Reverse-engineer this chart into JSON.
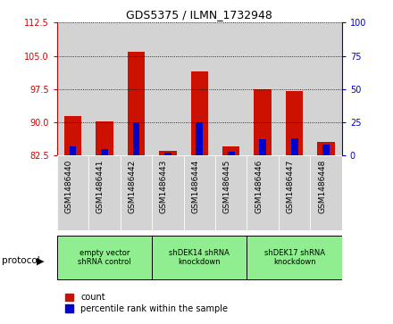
{
  "title": "GDS5375 / ILMN_1732948",
  "samples": [
    "GSM1486440",
    "GSM1486441",
    "GSM1486442",
    "GSM1486443",
    "GSM1486444",
    "GSM1486445",
    "GSM1486446",
    "GSM1486447",
    "GSM1486448"
  ],
  "red_bar_top": [
    91.5,
    90.2,
    106.0,
    83.5,
    101.5,
    84.5,
    97.5,
    97.0,
    85.5
  ],
  "red_bar_bottom": 82.5,
  "blue_values": [
    7,
    5,
    25,
    2,
    25,
    3,
    12,
    13,
    8
  ],
  "left_ylim": [
    82.5,
    112.5
  ],
  "right_ylim": [
    0,
    100
  ],
  "left_yticks": [
    82.5,
    90.0,
    97.5,
    105.0,
    112.5
  ],
  "right_yticks": [
    0,
    25,
    50,
    75,
    100
  ],
  "left_tick_color": "#cc0000",
  "right_tick_color": "#0000cc",
  "bar_color": "#cc1100",
  "blue_color": "#0000cc",
  "bg_color": "#ffffff",
  "col_bg_color": "#d3d3d3",
  "protocol_groups": [
    {
      "label": "empty vector\nshRNA control",
      "start": 0,
      "end": 3
    },
    {
      "label": "shDEK14 shRNA\nknockdown",
      "start": 3,
      "end": 6
    },
    {
      "label": "shDEK17 shRNA\nknockdown",
      "start": 6,
      "end": 9
    }
  ],
  "protocol_group_color": "#90ee90",
  "protocol_label": "protocol",
  "legend_count_label": "count",
  "legend_pct_label": "percentile rank within the sample",
  "bar_width": 0.55,
  "blue_bar_width": 0.22
}
